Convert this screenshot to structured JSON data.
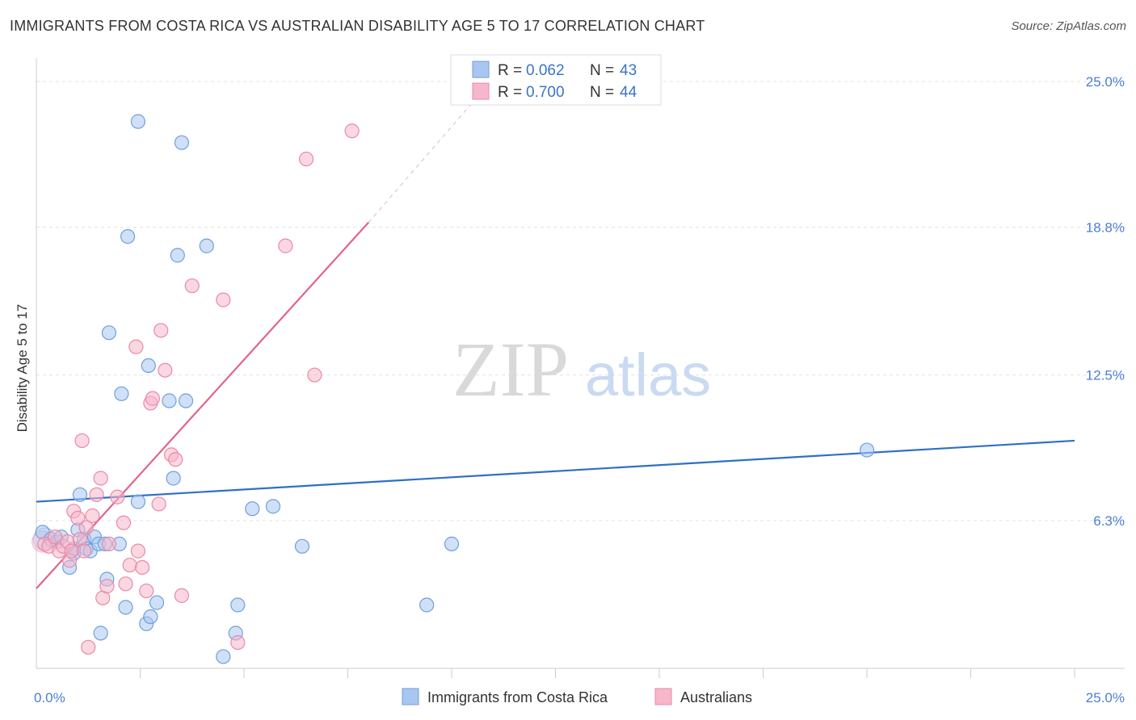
{
  "title": "IMMIGRANTS FROM COSTA RICA VS AUSTRALIAN DISABILITY AGE 5 TO 17 CORRELATION CHART",
  "source": "Source: ZipAtlas.com",
  "watermark": {
    "zip": "ZIP",
    "atlas": "atlas"
  },
  "chart_data": {
    "type": "scatter",
    "title": "IMMIGRANTS FROM COSTA RICA VS AUSTRALIAN DISABILITY AGE 5 TO 17 CORRELATION CHART",
    "xlabel": "",
    "ylabel": "Disability Age 5 to 17",
    "xlim": [
      0,
      25
    ],
    "ylim": [
      0,
      26
    ],
    "x_tick_labels": [
      {
        "value": 0,
        "label": "0.0%"
      },
      {
        "value": 25,
        "label": "25.0%"
      }
    ],
    "y_tick_labels": [
      {
        "value": 6.3,
        "label": "6.3%"
      },
      {
        "value": 12.5,
        "label": "12.5%"
      },
      {
        "value": 18.8,
        "label": "18.8%"
      },
      {
        "value": 25.0,
        "label": "25.0%"
      }
    ],
    "legend": [
      {
        "r_label": "R =",
        "r_value": "0.062",
        "n_label": "N =",
        "n_value": "43",
        "color": "#a9c6f0"
      },
      {
        "r_label": "R =",
        "r_value": "0.700",
        "n_label": "N =",
        "n_value": "44",
        "color": "#f7b7cb"
      }
    ],
    "series": [
      {
        "name": "Immigrants from Costa Rica",
        "fill": "#a9c6f0",
        "stroke": "#6f9fde",
        "trend_color": "#2f6fc6",
        "trend": {
          "x0": 0,
          "y0": 7.1,
          "x1": 25,
          "y1": 9.7,
          "dash_to": null
        },
        "points": [
          [
            0.15,
            5.8
          ],
          [
            0.35,
            5.5
          ],
          [
            0.5,
            5.4
          ],
          [
            0.6,
            5.6
          ],
          [
            0.8,
            4.3
          ],
          [
            0.9,
            4.9
          ],
          [
            1.0,
            5.9
          ],
          [
            1.05,
            7.4
          ],
          [
            1.15,
            5.5
          ],
          [
            1.2,
            5.1
          ],
          [
            1.3,
            5.0
          ],
          [
            1.4,
            5.6
          ],
          [
            1.5,
            5.3
          ],
          [
            1.55,
            1.5
          ],
          [
            1.65,
            5.3
          ],
          [
            1.7,
            3.8
          ],
          [
            1.75,
            14.3
          ],
          [
            2.0,
            5.3
          ],
          [
            2.05,
            11.7
          ],
          [
            2.15,
            2.6
          ],
          [
            2.45,
            7.1
          ],
          [
            2.45,
            23.3
          ],
          [
            2.65,
            1.9
          ],
          [
            2.75,
            2.2
          ],
          [
            2.7,
            12.9
          ],
          [
            2.9,
            2.8
          ],
          [
            3.2,
            11.4
          ],
          [
            3.3,
            8.1
          ],
          [
            3.4,
            17.6
          ],
          [
            3.5,
            22.4
          ],
          [
            3.6,
            11.4
          ],
          [
            4.1,
            18.0
          ],
          [
            4.5,
            0.5
          ],
          [
            4.8,
            1.5
          ],
          [
            4.85,
            2.7
          ],
          [
            5.2,
            6.8
          ],
          [
            5.7,
            6.9
          ],
          [
            6.4,
            5.2
          ],
          [
            9.4,
            2.7
          ],
          [
            2.2,
            18.4
          ],
          [
            10.0,
            5.3
          ],
          [
            20.0,
            9.3
          ],
          [
            0.9,
            5.1
          ]
        ]
      },
      {
        "name": "Australians",
        "fill": "#f7b7cb",
        "stroke": "#e88aa8",
        "trend_color": "#e0648e",
        "trend": {
          "x0": 0,
          "y0": 3.4,
          "x1": 8.0,
          "y1": 19.0,
          "dash_to": {
            "x": 10.5,
            "y": 24.1
          }
        },
        "points": [
          [
            0.2,
            5.3
          ],
          [
            0.3,
            5.2
          ],
          [
            0.45,
            5.6
          ],
          [
            0.55,
            5.0
          ],
          [
            0.65,
            5.2
          ],
          [
            0.75,
            5.4
          ],
          [
            0.8,
            4.6
          ],
          [
            0.85,
            5.0
          ],
          [
            0.9,
            6.7
          ],
          [
            1.0,
            6.4
          ],
          [
            1.05,
            5.5
          ],
          [
            1.1,
            9.7
          ],
          [
            1.15,
            5.0
          ],
          [
            1.2,
            6.0
          ],
          [
            1.25,
            0.9
          ],
          [
            1.35,
            6.5
          ],
          [
            1.45,
            7.4
          ],
          [
            1.55,
            8.1
          ],
          [
            1.6,
            3.0
          ],
          [
            1.7,
            3.5
          ],
          [
            1.75,
            5.3
          ],
          [
            1.95,
            7.3
          ],
          [
            2.1,
            6.2
          ],
          [
            2.15,
            3.6
          ],
          [
            2.25,
            4.4
          ],
          [
            2.4,
            13.7
          ],
          [
            2.45,
            5.0
          ],
          [
            2.55,
            4.3
          ],
          [
            2.65,
            3.3
          ],
          [
            2.75,
            11.3
          ],
          [
            2.8,
            11.5
          ],
          [
            2.95,
            7.0
          ],
          [
            3.0,
            14.4
          ],
          [
            3.1,
            12.7
          ],
          [
            3.25,
            9.1
          ],
          [
            3.35,
            8.9
          ],
          [
            3.5,
            3.1
          ],
          [
            3.75,
            16.3
          ],
          [
            4.5,
            15.7
          ],
          [
            4.85,
            1.1
          ],
          [
            6.0,
            18.0
          ],
          [
            6.5,
            21.7
          ],
          [
            6.7,
            12.5
          ],
          [
            7.6,
            22.9
          ]
        ]
      }
    ]
  }
}
